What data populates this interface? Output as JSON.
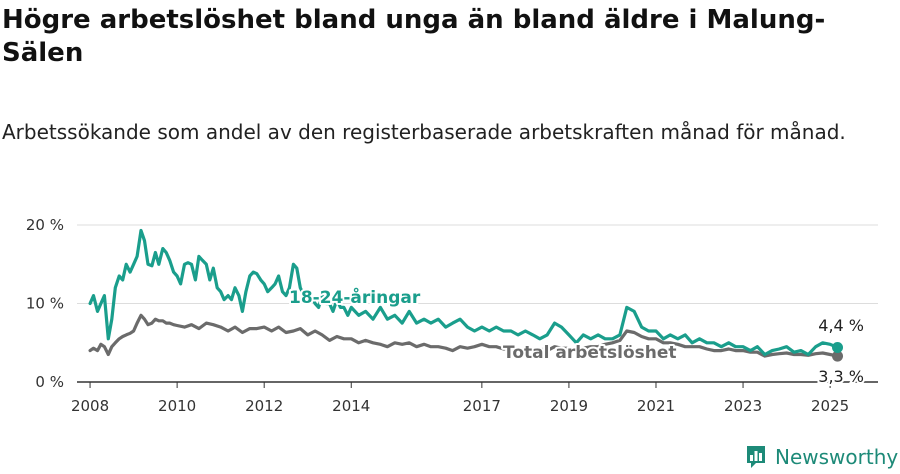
{
  "title": "Högre arbetslöshet bland unga än bland äldre i Malung-Sälen",
  "subtitle": "Arbetssökande som andel av den registerbaserade arbetskraften månad för månad.",
  "brand": "Newsworthy",
  "colors": {
    "youth": "#1a9e8c",
    "total": "#6b6b6b",
    "grid": "#dddddd",
    "axis": "#333333"
  },
  "chart_data": {
    "type": "line",
    "xlim": [
      2007.7,
      2026.1
    ],
    "ylim": [
      0,
      20
    ],
    "y_ticks": [
      {
        "value": 0,
        "label": "0 %"
      },
      {
        "value": 10,
        "label": "10 %"
      },
      {
        "value": 20,
        "label": "20 %"
      }
    ],
    "x_ticks": [
      {
        "value": 2008,
        "label": "2008"
      },
      {
        "value": 2010,
        "label": "2010"
      },
      {
        "value": 2012,
        "label": "2012"
      },
      {
        "value": 2014,
        "label": "2014"
      },
      {
        "value": 2017,
        "label": "2017"
      },
      {
        "value": 2019,
        "label": "2019"
      },
      {
        "value": 2021,
        "label": "2021"
      },
      {
        "value": 2023,
        "label": "2023"
      },
      {
        "value": 2025,
        "label": "2025"
      }
    ],
    "series": [
      {
        "name": "18-24-åringar",
        "end_label": "4,4 %",
        "points": [
          [
            2008.0,
            10.0
          ],
          [
            2008.08,
            11.0
          ],
          [
            2008.17,
            9.0
          ],
          [
            2008.25,
            10.0
          ],
          [
            2008.33,
            11.0
          ],
          [
            2008.42,
            5.5
          ],
          [
            2008.5,
            8.0
          ],
          [
            2008.58,
            12.0
          ],
          [
            2008.67,
            13.5
          ],
          [
            2008.75,
            13.0
          ],
          [
            2008.83,
            15.0
          ],
          [
            2008.92,
            14.0
          ],
          [
            2009.0,
            15.0
          ],
          [
            2009.08,
            16.0
          ],
          [
            2009.17,
            19.3
          ],
          [
            2009.25,
            18.0
          ],
          [
            2009.33,
            15.0
          ],
          [
            2009.42,
            14.8
          ],
          [
            2009.5,
            16.5
          ],
          [
            2009.58,
            15.0
          ],
          [
            2009.67,
            17.0
          ],
          [
            2009.75,
            16.5
          ],
          [
            2009.83,
            15.5
          ],
          [
            2009.92,
            14.0
          ],
          [
            2010.0,
            13.5
          ],
          [
            2010.08,
            12.5
          ],
          [
            2010.17,
            15.0
          ],
          [
            2010.25,
            15.2
          ],
          [
            2010.33,
            15.0
          ],
          [
            2010.42,
            13.0
          ],
          [
            2010.5,
            16.0
          ],
          [
            2010.58,
            15.5
          ],
          [
            2010.67,
            15.0
          ],
          [
            2010.75,
            13.0
          ],
          [
            2010.83,
            14.5
          ],
          [
            2010.92,
            12.0
          ],
          [
            2011.0,
            11.5
          ],
          [
            2011.08,
            10.5
          ],
          [
            2011.17,
            11.0
          ],
          [
            2011.25,
            10.5
          ],
          [
            2011.33,
            12.0
          ],
          [
            2011.42,
            11.0
          ],
          [
            2011.5,
            9.0
          ],
          [
            2011.58,
            11.5
          ],
          [
            2011.67,
            13.5
          ],
          [
            2011.75,
            14.0
          ],
          [
            2011.83,
            13.8
          ],
          [
            2011.92,
            13.0
          ],
          [
            2012.0,
            12.5
          ],
          [
            2012.08,
            11.5
          ],
          [
            2012.17,
            12.0
          ],
          [
            2012.25,
            12.5
          ],
          [
            2012.33,
            13.5
          ],
          [
            2012.42,
            11.5
          ],
          [
            2012.5,
            11.0
          ],
          [
            2012.58,
            12.0
          ],
          [
            2012.67,
            15.0
          ],
          [
            2012.75,
            14.5
          ],
          [
            2012.83,
            12.0
          ],
          [
            2012.92,
            11.0
          ],
          [
            2013.0,
            10.5
          ],
          [
            2013.08,
            11.0
          ],
          [
            2013.17,
            10.0
          ],
          [
            2013.25,
            9.5
          ],
          [
            2013.33,
            11.0
          ],
          [
            2013.42,
            10.0
          ],
          [
            2013.5,
            10.0
          ],
          [
            2013.58,
            9.0
          ],
          [
            2013.67,
            10.5
          ],
          [
            2013.75,
            9.5
          ],
          [
            2013.83,
            9.5
          ],
          [
            2013.92,
            8.5
          ],
          [
            2014.0,
            9.5
          ],
          [
            2014.17,
            8.5
          ],
          [
            2014.33,
            9.0
          ],
          [
            2014.5,
            8.0
          ],
          [
            2014.67,
            9.5
          ],
          [
            2014.83,
            8.0
          ],
          [
            2015.0,
            8.5
          ],
          [
            2015.17,
            7.5
          ],
          [
            2015.33,
            9.0
          ],
          [
            2015.5,
            7.5
          ],
          [
            2015.67,
            8.0
          ],
          [
            2015.83,
            7.5
          ],
          [
            2016.0,
            8.0
          ],
          [
            2016.17,
            7.0
          ],
          [
            2016.33,
            7.5
          ],
          [
            2016.5,
            8.0
          ],
          [
            2016.67,
            7.0
          ],
          [
            2016.83,
            6.5
          ],
          [
            2017.0,
            7.0
          ],
          [
            2017.17,
            6.5
          ],
          [
            2017.33,
            7.0
          ],
          [
            2017.5,
            6.5
          ],
          [
            2017.67,
            6.5
          ],
          [
            2017.83,
            6.0
          ],
          [
            2018.0,
            6.5
          ],
          [
            2018.17,
            6.0
          ],
          [
            2018.33,
            5.5
          ],
          [
            2018.5,
            6.0
          ],
          [
            2018.67,
            7.5
          ],
          [
            2018.83,
            7.0
          ],
          [
            2019.0,
            6.0
          ],
          [
            2019.17,
            5.0
          ],
          [
            2019.33,
            6.0
          ],
          [
            2019.5,
            5.5
          ],
          [
            2019.67,
            6.0
          ],
          [
            2019.83,
            5.5
          ],
          [
            2020.0,
            5.5
          ],
          [
            2020.17,
            6.0
          ],
          [
            2020.33,
            9.5
          ],
          [
            2020.5,
            9.0
          ],
          [
            2020.67,
            7.0
          ],
          [
            2020.83,
            6.5
          ],
          [
            2021.0,
            6.5
          ],
          [
            2021.17,
            5.5
          ],
          [
            2021.33,
            6.0
          ],
          [
            2021.5,
            5.5
          ],
          [
            2021.67,
            6.0
          ],
          [
            2021.83,
            5.0
          ],
          [
            2022.0,
            5.5
          ],
          [
            2022.17,
            5.0
          ],
          [
            2022.33,
            5.0
          ],
          [
            2022.5,
            4.5
          ],
          [
            2022.67,
            5.0
          ],
          [
            2022.83,
            4.5
          ],
          [
            2023.0,
            4.5
          ],
          [
            2023.17,
            4.0
          ],
          [
            2023.33,
            4.5
          ],
          [
            2023.5,
            3.5
          ],
          [
            2023.67,
            4.0
          ],
          [
            2023.83,
            4.2
          ],
          [
            2024.0,
            4.5
          ],
          [
            2024.17,
            3.8
          ],
          [
            2024.33,
            4.0
          ],
          [
            2024.5,
            3.5
          ],
          [
            2024.67,
            4.5
          ],
          [
            2024.83,
            5.0
          ],
          [
            2025.0,
            4.8
          ],
          [
            2025.17,
            4.4
          ]
        ]
      },
      {
        "name": "Total arbetslöshet",
        "end_label": "3,3 %",
        "points": [
          [
            2008.0,
            4.0
          ],
          [
            2008.08,
            4.3
          ],
          [
            2008.17,
            4.0
          ],
          [
            2008.25,
            4.8
          ],
          [
            2008.33,
            4.5
          ],
          [
            2008.42,
            3.5
          ],
          [
            2008.5,
            4.5
          ],
          [
            2008.58,
            5.0
          ],
          [
            2008.67,
            5.5
          ],
          [
            2008.75,
            5.8
          ],
          [
            2008.83,
            6.0
          ],
          [
            2008.92,
            6.2
          ],
          [
            2009.0,
            6.5
          ],
          [
            2009.08,
            7.5
          ],
          [
            2009.17,
            8.5
          ],
          [
            2009.25,
            8.0
          ],
          [
            2009.33,
            7.3
          ],
          [
            2009.42,
            7.5
          ],
          [
            2009.5,
            8.0
          ],
          [
            2009.58,
            7.8
          ],
          [
            2009.67,
            7.8
          ],
          [
            2009.75,
            7.5
          ],
          [
            2009.83,
            7.5
          ],
          [
            2009.92,
            7.3
          ],
          [
            2010.0,
            7.2
          ],
          [
            2010.17,
            7.0
          ],
          [
            2010.33,
            7.3
          ],
          [
            2010.5,
            6.8
          ],
          [
            2010.67,
            7.5
          ],
          [
            2010.83,
            7.3
          ],
          [
            2011.0,
            7.0
          ],
          [
            2011.17,
            6.5
          ],
          [
            2011.33,
            7.0
          ],
          [
            2011.5,
            6.3
          ],
          [
            2011.67,
            6.8
          ],
          [
            2011.83,
            6.8
          ],
          [
            2012.0,
            7.0
          ],
          [
            2012.17,
            6.5
          ],
          [
            2012.33,
            7.0
          ],
          [
            2012.5,
            6.3
          ],
          [
            2012.67,
            6.5
          ],
          [
            2012.83,
            6.8
          ],
          [
            2013.0,
            6.0
          ],
          [
            2013.17,
            6.5
          ],
          [
            2013.33,
            6.0
          ],
          [
            2013.5,
            5.3
          ],
          [
            2013.67,
            5.8
          ],
          [
            2013.83,
            5.5
          ],
          [
            2014.0,
            5.5
          ],
          [
            2014.17,
            5.0
          ],
          [
            2014.33,
            5.3
          ],
          [
            2014.5,
            5.0
          ],
          [
            2014.67,
            4.8
          ],
          [
            2014.83,
            4.5
          ],
          [
            2015.0,
            5.0
          ],
          [
            2015.17,
            4.8
          ],
          [
            2015.33,
            5.0
          ],
          [
            2015.5,
            4.5
          ],
          [
            2015.67,
            4.8
          ],
          [
            2015.83,
            4.5
          ],
          [
            2016.0,
            4.5
          ],
          [
            2016.17,
            4.3
          ],
          [
            2016.33,
            4.0
          ],
          [
            2016.5,
            4.5
          ],
          [
            2016.67,
            4.3
          ],
          [
            2016.83,
            4.5
          ],
          [
            2017.0,
            4.8
          ],
          [
            2017.17,
            4.5
          ],
          [
            2017.33,
            4.5
          ],
          [
            2017.5,
            4.2
          ],
          [
            2017.67,
            4.3
          ],
          [
            2017.83,
            4.0
          ],
          [
            2018.0,
            4.2
          ],
          [
            2018.17,
            4.0
          ],
          [
            2018.33,
            4.2
          ],
          [
            2018.5,
            4.0
          ],
          [
            2018.67,
            4.5
          ],
          [
            2018.83,
            4.3
          ],
          [
            2019.0,
            4.3
          ],
          [
            2019.17,
            4.0
          ],
          [
            2019.33,
            4.3
          ],
          [
            2019.5,
            4.5
          ],
          [
            2019.67,
            4.5
          ],
          [
            2019.83,
            4.8
          ],
          [
            2020.0,
            5.0
          ],
          [
            2020.17,
            5.3
          ],
          [
            2020.33,
            6.5
          ],
          [
            2020.5,
            6.3
          ],
          [
            2020.67,
            5.8
          ],
          [
            2020.83,
            5.5
          ],
          [
            2021.0,
            5.5
          ],
          [
            2021.17,
            5.0
          ],
          [
            2021.33,
            5.0
          ],
          [
            2021.5,
            4.8
          ],
          [
            2021.67,
            4.5
          ],
          [
            2021.83,
            4.5
          ],
          [
            2022.0,
            4.5
          ],
          [
            2022.17,
            4.2
          ],
          [
            2022.33,
            4.0
          ],
          [
            2022.5,
            4.0
          ],
          [
            2022.67,
            4.2
          ],
          [
            2022.83,
            4.0
          ],
          [
            2023.0,
            4.0
          ],
          [
            2023.17,
            3.8
          ],
          [
            2023.33,
            3.8
          ],
          [
            2023.5,
            3.3
          ],
          [
            2023.67,
            3.5
          ],
          [
            2023.83,
            3.6
          ],
          [
            2024.0,
            3.7
          ],
          [
            2024.17,
            3.5
          ],
          [
            2024.33,
            3.5
          ],
          [
            2024.5,
            3.4
          ],
          [
            2024.67,
            3.6
          ],
          [
            2024.83,
            3.7
          ],
          [
            2025.0,
            3.5
          ],
          [
            2025.17,
            3.3
          ]
        ]
      }
    ]
  }
}
